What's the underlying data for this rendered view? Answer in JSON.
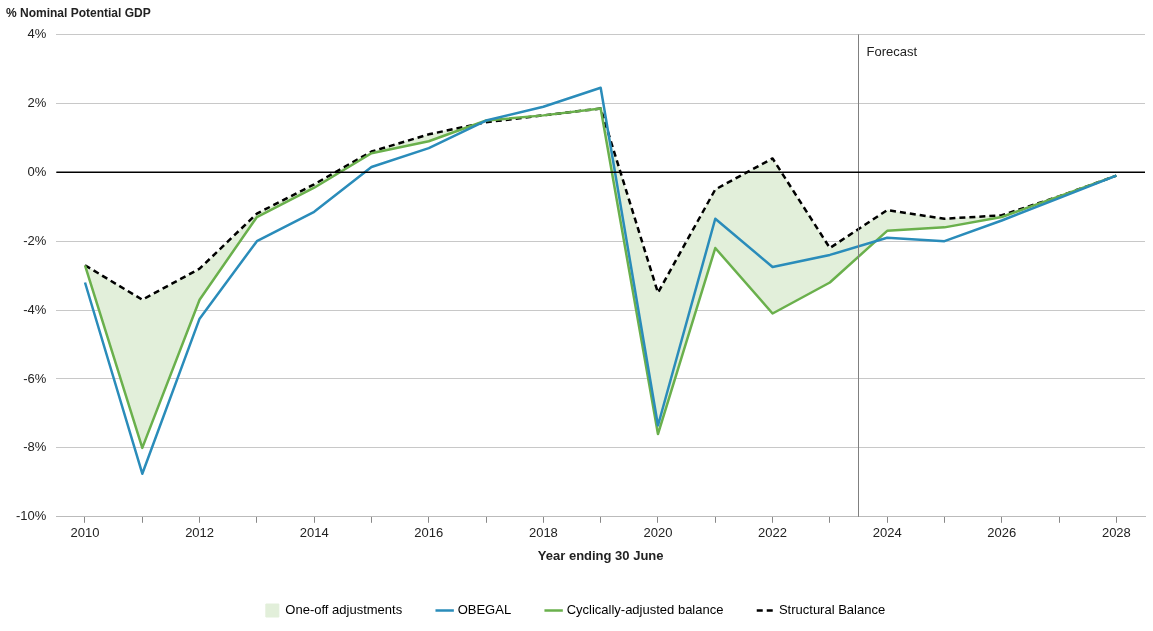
{
  "chart_data": {
    "type": "line",
    "ylabel": "% Nominal Potential GDP",
    "xlabel": "Year ending 30 June",
    "x": [
      2010,
      2011,
      2012,
      2013,
      2014,
      2015,
      2016,
      2017,
      2018,
      2019,
      2020,
      2021,
      2022,
      2023,
      2024,
      2025,
      2026,
      2027,
      2028
    ],
    "xlim": [
      2009.5,
      2028.5
    ],
    "xticks": [
      2010,
      {
        "value": 2011,
        "label": null
      },
      2012,
      {
        "value": 2013,
        "label": null
      },
      2014,
      {
        "value": 2015,
        "label": null
      },
      2016,
      {
        "value": 2017,
        "label": null
      },
      2018,
      {
        "value": 2019,
        "label": null
      },
      2020,
      {
        "value": 2021,
        "label": null
      },
      2022,
      {
        "value": 2023,
        "label": null
      },
      2024,
      {
        "value": 2025,
        "label": null
      },
      2026,
      {
        "value": 2027,
        "label": null
      },
      2028
    ],
    "ylim": [
      -10,
      4
    ],
    "yticks": [
      {
        "value": -10,
        "label": "-10%"
      },
      {
        "value": -8,
        "label": "-8%"
      },
      {
        "value": -6,
        "label": "-6%"
      },
      {
        "value": -4,
        "label": "-4%"
      },
      {
        "value": -2,
        "label": "-2%"
      },
      {
        "value": 0,
        "label": "0%"
      },
      {
        "value": 2,
        "label": "2%"
      },
      {
        "value": 4,
        "label": "4%"
      }
    ],
    "grid": "y",
    "legend": "bottom",
    "marker": "none",
    "series": [
      {
        "name": "One-off adjustments",
        "type": "area",
        "color": "#e2efda",
        "values": [
          null,
          null,
          null,
          null,
          null,
          null,
          null,
          null,
          null,
          null,
          null,
          null,
          null,
          null,
          null,
          null,
          null,
          null,
          null
        ],
        "lower": [
          -2.7,
          -8.0,
          -3.7,
          -1.3,
          -0.45,
          0.55,
          0.9,
          1.5,
          1.65,
          1.85,
          -7.6,
          -2.2,
          -4.1,
          -3.2,
          -1.7,
          -1.6,
          -1.3,
          -0.7,
          -0.1
        ],
        "upper": [
          -2.7,
          -3.7,
          -2.8,
          -1.2,
          -0.35,
          0.6,
          1.1,
          1.45,
          1.65,
          1.85,
          -3.5,
          -0.5,
          0.4,
          -2.2,
          -1.1,
          -1.35,
          -1.25,
          -0.7,
          -0.1
        ]
      },
      {
        "name": "OBEGAL",
        "type": "line",
        "color": "#2a8cba",
        "line_style": "solid",
        "values": [
          -3.2,
          -8.75,
          -4.25,
          -2.0,
          -1.15,
          0.15,
          0.7,
          1.5,
          1.9,
          2.45,
          -7.35,
          -1.35,
          -2.75,
          -2.4,
          -1.9,
          -2.0,
          -1.4,
          -0.75,
          -0.1
        ]
      },
      {
        "name": "Cyclically-adjusted balance",
        "type": "line",
        "color": "#6ab04c",
        "line_style": "solid",
        "values": [
          -2.7,
          -8.0,
          -3.7,
          -1.3,
          -0.45,
          0.55,
          0.9,
          1.5,
          1.65,
          1.85,
          -7.6,
          -2.2,
          -4.1,
          -3.2,
          -1.7,
          -1.6,
          -1.3,
          -0.7,
          -0.1
        ]
      },
      {
        "name": "Structural Balance",
        "type": "line",
        "color": "#000000",
        "line_style": "dashed",
        "values": [
          -2.7,
          -3.7,
          -2.8,
          -1.2,
          -0.35,
          0.6,
          1.1,
          1.45,
          1.65,
          1.85,
          -3.5,
          -0.5,
          0.4,
          -2.2,
          -1.1,
          -1.35,
          -1.25,
          -0.7,
          -0.1
        ]
      }
    ],
    "ref_lines": [
      {
        "axis": "x",
        "value": 2023.5,
        "label": "Forecast",
        "color": "#808080"
      },
      {
        "axis": "y",
        "value": 0,
        "color": "#000000"
      }
    ]
  }
}
